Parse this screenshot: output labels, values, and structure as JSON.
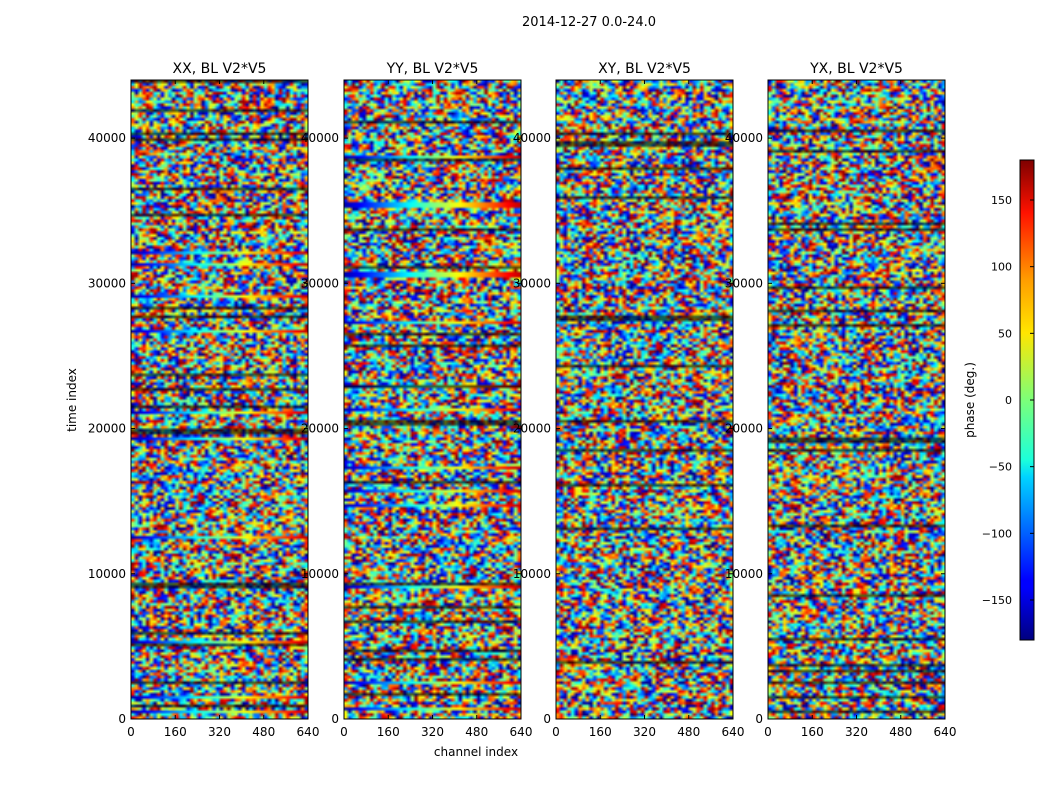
{
  "figure": {
    "suptitle": "2014-12-27 0.0-24.0",
    "xlabel": "channel index",
    "ylabel": "time index",
    "colorbar_label": "phase (deg.)"
  },
  "chart_data": {
    "type": "heatmap",
    "panels": [
      {
        "title": "XX, BL V2*V5"
      },
      {
        "title": "YY, BL V2*V5"
      },
      {
        "title": "XY, BL V2*V5"
      },
      {
        "title": "YX, BL V2*V5"
      }
    ],
    "xlim": [
      0,
      640
    ],
    "ylim": [
      0,
      44000
    ],
    "xticks": [
      0,
      160,
      320,
      480,
      640
    ],
    "yticks": [
      0,
      10000,
      20000,
      30000,
      40000
    ],
    "colorbar": {
      "range": [
        -180,
        180
      ],
      "ticks": [
        -150,
        -100,
        -50,
        0,
        50,
        100,
        150
      ],
      "colormap": "jet"
    }
  }
}
